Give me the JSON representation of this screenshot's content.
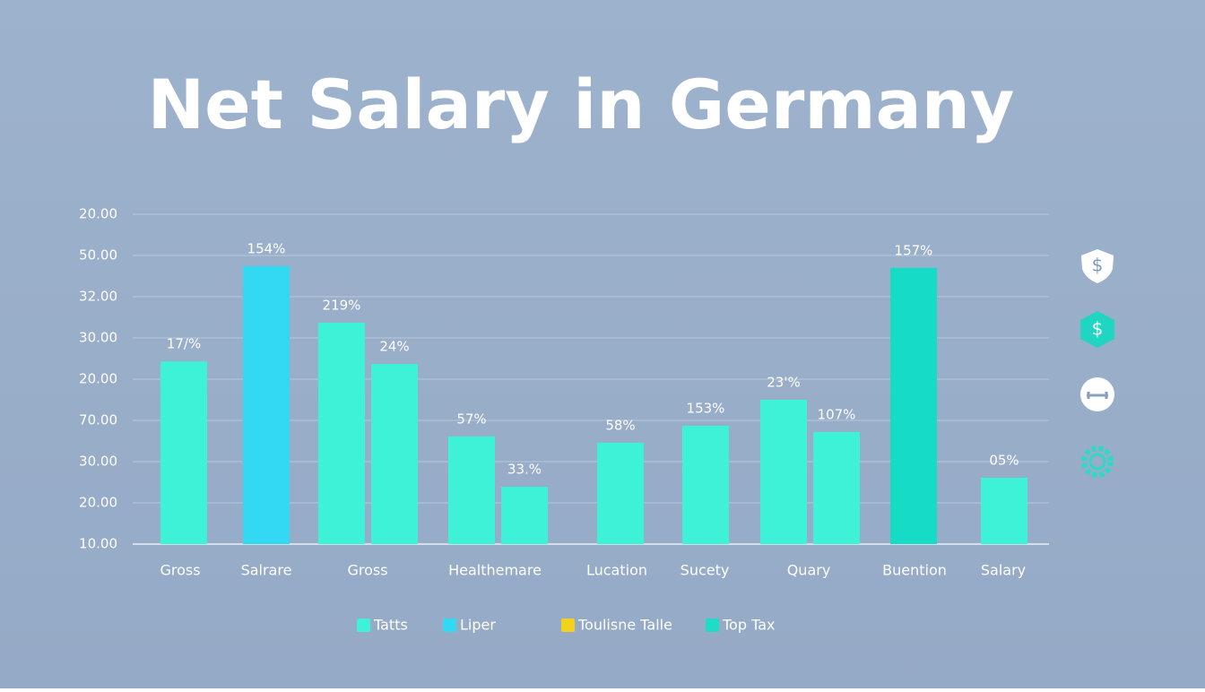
{
  "chart_data": {
    "type": "bar",
    "title": "Net Salary in Germany",
    "ylim": [
      0,
      8
    ],
    "yticks": [
      {
        "value": 0,
        "label": "10.00"
      },
      {
        "value": 1,
        "label": "20.00"
      },
      {
        "value": 2,
        "label": "30.00"
      },
      {
        "value": 3,
        "label": "70.00"
      },
      {
        "value": 4,
        "label": "20.00"
      },
      {
        "value": 5,
        "label": "30.00"
      },
      {
        "value": 6,
        "label": "32.00"
      },
      {
        "value": 7,
        "label": "50.00"
      },
      {
        "value": 8,
        "label": "20.00"
      }
    ],
    "grid": true,
    "groups": [
      {
        "category": "Gross",
        "bars": [
          {
            "value": 4.43,
            "annotation": "17/%",
            "color": "#3ef2d8"
          }
        ]
      },
      {
        "category": "Salrare",
        "bars": [
          {
            "value": 6.74,
            "annotation": "154%",
            "color": "#33d9f2"
          }
        ]
      },
      {
        "category": "Gross",
        "bars": [
          {
            "value": 5.37,
            "annotation": "219%",
            "color": "#3ef2d8"
          },
          {
            "value": 4.37,
            "annotation": "24%",
            "color": "#3ef2d8"
          }
        ]
      },
      {
        "category": "Healthemare",
        "bars": [
          {
            "value": 2.61,
            "annotation": "57%",
            "color": "#3ef2d8"
          },
          {
            "value": 1.39,
            "annotation": "33.%",
            "color": "#3ef2d8"
          }
        ]
      },
      {
        "category": "Lucation",
        "bars": [
          {
            "value": 2.46,
            "annotation": "58%",
            "color": "#3ef2d8"
          }
        ]
      },
      {
        "category": "Sucety",
        "bars": [
          {
            "value": 2.87,
            "annotation": "153%",
            "color": "#3ef2d8"
          }
        ]
      },
      {
        "category": "Quary",
        "bars": [
          {
            "value": 3.5,
            "annotation": "23'%",
            "color": "#3ef2d8"
          },
          {
            "value": 2.72,
            "annotation": "107%",
            "color": "#3ef2d8"
          }
        ]
      },
      {
        "category": "Buention",
        "bars": [
          {
            "value": 6.7,
            "annotation": "157%",
            "color": "#16dcc6"
          }
        ]
      },
      {
        "category": "Salary",
        "bars": [
          {
            "value": 1.61,
            "annotation": "05%",
            "color": "#3ef2d8"
          }
        ]
      }
    ],
    "legend": [
      {
        "name": "Tatts",
        "color": "#3ef2d8"
      },
      {
        "name": "Liper",
        "color": "#33d9f2"
      },
      {
        "name": "Toulisne Talle",
        "color": "#f2d21c"
      },
      {
        "name": "Top Tax",
        "color": "#1fdcc6"
      }
    ],
    "side_icons": [
      "$",
      "$"
    ]
  }
}
